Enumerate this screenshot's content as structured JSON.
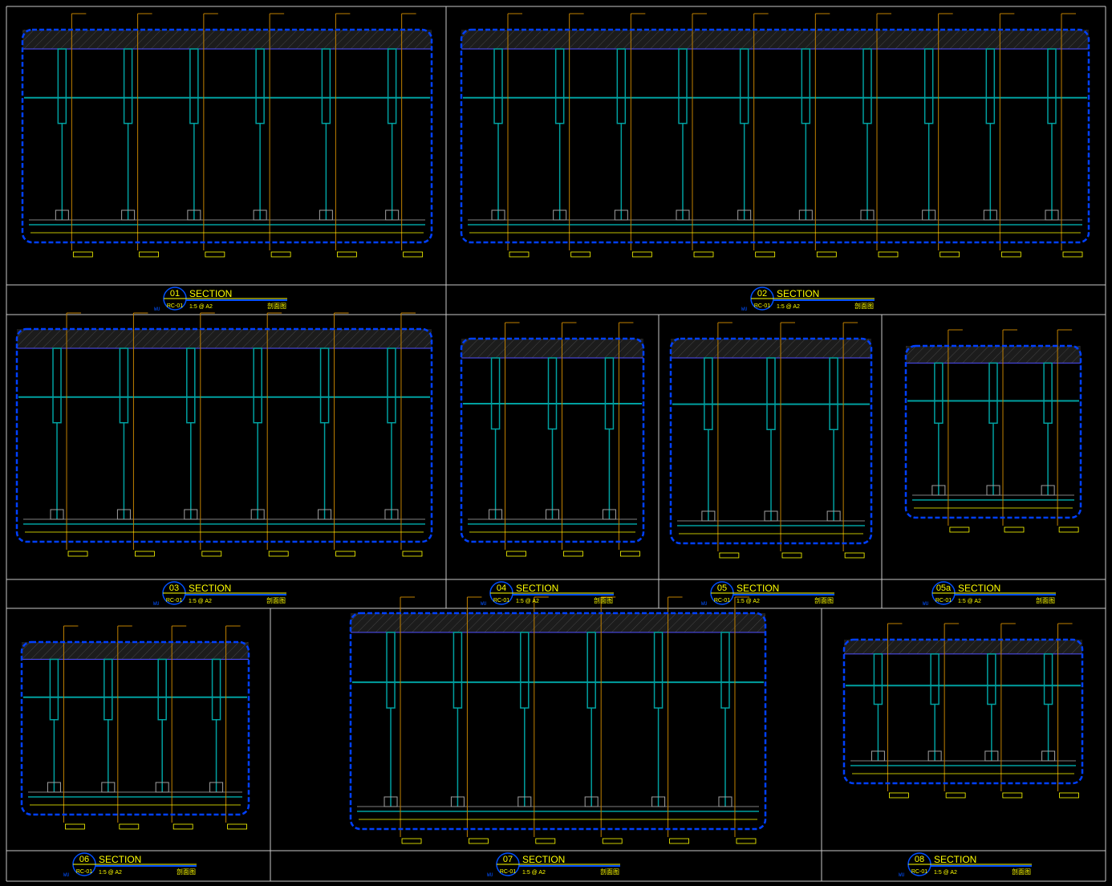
{
  "colors": {
    "background": "#000000",
    "frame": "#c8c8c8",
    "dashed_outline": "#0040ff",
    "structure": "#00a0a0",
    "leader": "#c08000",
    "text": "#ffff00",
    "hatch": "#3a3a3a"
  },
  "sections": [
    {
      "number": "01",
      "word": "SECTION",
      "ref": "RC-01",
      "scale": "1:5 @ A2",
      "cn": "剖面图",
      "prefix": "WU"
    },
    {
      "number": "02",
      "word": "SECTION",
      "ref": "RC-01",
      "scale": "1:5 @ A2",
      "cn": "剖面图",
      "prefix": "WU"
    },
    {
      "number": "03",
      "word": "SECTION",
      "ref": "RC-01",
      "scale": "1:5 @ A2",
      "cn": "剖面图",
      "prefix": "WU"
    },
    {
      "number": "04",
      "word": "SECTION",
      "ref": "RC-01",
      "scale": "1:5 @ A2",
      "cn": "剖面图",
      "prefix": "WU"
    },
    {
      "number": "05",
      "word": "SECTION",
      "ref": "RC-01",
      "scale": "1:5 @ A2",
      "cn": "剖面图",
      "prefix": "WU"
    },
    {
      "number": "05a",
      "word": "SECTION",
      "ref": "RC-01",
      "scale": "1:5 @ A2",
      "cn": "剖面图",
      "prefix": "WU"
    },
    {
      "number": "06",
      "word": "SECTION",
      "ref": "RC-01",
      "scale": "1:5 @ A2",
      "cn": "剖面图",
      "prefix": "WU"
    },
    {
      "number": "07",
      "word": "SECTION",
      "ref": "RC-01",
      "scale": "1:5 @ A2",
      "cn": "剖面图",
      "prefix": "WU"
    },
    {
      "number": "08",
      "word": "SECTION",
      "ref": "RC-01",
      "scale": "1:5 @ A2",
      "cn": "剖面图",
      "prefix": "WU"
    }
  ]
}
